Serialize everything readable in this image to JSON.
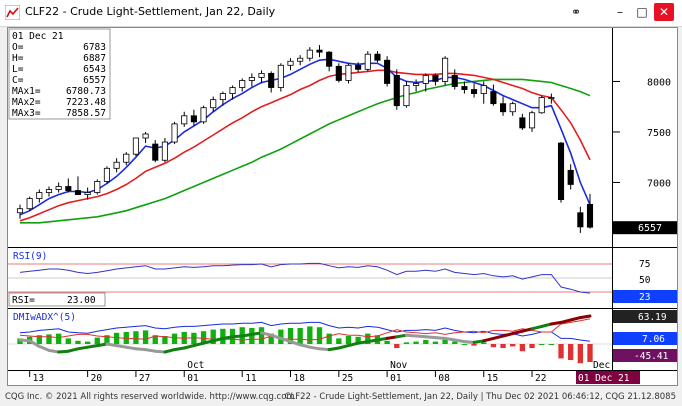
{
  "window": {
    "title": "CLF22 - Crude Light-Settlement, Jan 22, Daily",
    "icons": [
      "app-icon",
      "link-icon",
      "minimize-icon",
      "maximize-icon",
      "close-icon"
    ]
  },
  "price_panel": {
    "info": [
      {
        "k": "01 Dec 21",
        "v": ""
      },
      {
        "k": "O=",
        "v": "6783"
      },
      {
        "k": "H=",
        "v": "6887"
      },
      {
        "k": "L=",
        "v": "6543"
      },
      {
        "k": "C=",
        "v": "6557"
      },
      {
        "k": "MAx1=",
        "v": "6780.73"
      },
      {
        "k": "MAx2=",
        "v": "7223.48"
      },
      {
        "k": "MAx3=",
        "v": "7858.57"
      }
    ],
    "y_ticks": [
      "8000",
      "7500",
      "7000"
    ],
    "last_price": "6557"
  },
  "rsi_panel": {
    "label": "RSI(9)",
    "ticks": [
      "75",
      "50"
    ],
    "readout_label": "RSI=",
    "readout_value": "23.00",
    "last_value": "23"
  },
  "dmi_panel": {
    "label": "DMIwADX^(5)",
    "badges": [
      "63.19",
      "7.06",
      "-45.41"
    ]
  },
  "x_axis": {
    "day_labels": [
      "13",
      "20",
      "27",
      "01",
      "11",
      "18",
      "25",
      "01",
      "08",
      "15",
      "22",
      "01 Dec 21"
    ],
    "month_labels": [
      "Oct",
      "Nov",
      "Dec"
    ]
  },
  "status": {
    "left": "CQG Inc. © 2021 All rights reserved worldwide. http://www.cqg.com",
    "right": "CLF22 - Crude Light-Settlement, Jan 22, Daily | Thu Dec 02 2021 06:46:12, CQG 21.12.8085"
  },
  "colors": {
    "ma_fast": "#1a2be0",
    "ma_mid": "#e02020",
    "ma_slow": "#10a010",
    "rsi_line": "#3333cc",
    "badge_blue": "#1040ff",
    "badge_dark": "#222222",
    "badge_purple": "#701060",
    "date_badge": "#800040"
  },
  "chart_data": {
    "type": "candlestick",
    "title": "CLF22 - Crude Light-Settlement, Jan 22, Daily",
    "ylim": [
      6450,
      8450
    ],
    "y_ticks": [
      7000,
      7500,
      8000
    ],
    "candles": [
      {
        "o": 6700,
        "h": 6780,
        "l": 6640,
        "c": 6740
      },
      {
        "o": 6740,
        "h": 6860,
        "l": 6720,
        "c": 6840
      },
      {
        "o": 6840,
        "h": 6930,
        "l": 6800,
        "c": 6900
      },
      {
        "o": 6900,
        "h": 6960,
        "l": 6860,
        "c": 6930
      },
      {
        "o": 6930,
        "h": 7000,
        "l": 6900,
        "c": 6960
      },
      {
        "o": 6960,
        "h": 7040,
        "l": 6900,
        "c": 6920
      },
      {
        "o": 6920,
        "h": 7060,
        "l": 6880,
        "c": 6880
      },
      {
        "o": 6880,
        "h": 6950,
        "l": 6830,
        "c": 6900
      },
      {
        "o": 6900,
        "h": 7030,
        "l": 6880,
        "c": 7010
      },
      {
        "o": 7010,
        "h": 7160,
        "l": 6990,
        "c": 7140
      },
      {
        "o": 7140,
        "h": 7240,
        "l": 7100,
        "c": 7200
      },
      {
        "o": 7200,
        "h": 7300,
        "l": 7170,
        "c": 7280
      },
      {
        "o": 7280,
        "h": 7420,
        "l": 7260,
        "c": 7440
      },
      {
        "o": 7440,
        "h": 7500,
        "l": 7390,
        "c": 7480
      },
      {
        "o": 7380,
        "h": 7420,
        "l": 7200,
        "c": 7220
      },
      {
        "o": 7220,
        "h": 7440,
        "l": 7200,
        "c": 7400
      },
      {
        "o": 7400,
        "h": 7600,
        "l": 7380,
        "c": 7580
      },
      {
        "o": 7580,
        "h": 7700,
        "l": 7550,
        "c": 7660
      },
      {
        "o": 7660,
        "h": 7720,
        "l": 7560,
        "c": 7600
      },
      {
        "o": 7600,
        "h": 7760,
        "l": 7580,
        "c": 7740
      },
      {
        "o": 7740,
        "h": 7850,
        "l": 7700,
        "c": 7820
      },
      {
        "o": 7820,
        "h": 7900,
        "l": 7760,
        "c": 7880
      },
      {
        "o": 7880,
        "h": 7960,
        "l": 7820,
        "c": 7940
      },
      {
        "o": 7940,
        "h": 8030,
        "l": 7900,
        "c": 8010
      },
      {
        "o": 8010,
        "h": 8080,
        "l": 7950,
        "c": 8040
      },
      {
        "o": 8040,
        "h": 8110,
        "l": 7980,
        "c": 8080
      },
      {
        "o": 8080,
        "h": 8100,
        "l": 7890,
        "c": 7940
      },
      {
        "o": 7940,
        "h": 8180,
        "l": 7900,
        "c": 8160
      },
      {
        "o": 8160,
        "h": 8230,
        "l": 8110,
        "c": 8200
      },
      {
        "o": 8200,
        "h": 8260,
        "l": 8160,
        "c": 8230
      },
      {
        "o": 8230,
        "h": 8340,
        "l": 8200,
        "c": 8310
      },
      {
        "o": 8310,
        "h": 8360,
        "l": 8240,
        "c": 8290
      },
      {
        "o": 8290,
        "h": 8300,
        "l": 8100,
        "c": 8150
      },
      {
        "o": 8150,
        "h": 8180,
        "l": 7990,
        "c": 8010
      },
      {
        "o": 8010,
        "h": 8180,
        "l": 7980,
        "c": 8160
      },
      {
        "o": 8160,
        "h": 8190,
        "l": 8090,
        "c": 8120
      },
      {
        "o": 8120,
        "h": 8300,
        "l": 8100,
        "c": 8270
      },
      {
        "o": 8270,
        "h": 8300,
        "l": 8190,
        "c": 8210
      },
      {
        "o": 8210,
        "h": 8250,
        "l": 7950,
        "c": 7980
      },
      {
        "o": 8060,
        "h": 8120,
        "l": 7720,
        "c": 7760
      },
      {
        "o": 7760,
        "h": 8000,
        "l": 7740,
        "c": 7960
      },
      {
        "o": 7960,
        "h": 8020,
        "l": 7900,
        "c": 7980
      },
      {
        "o": 7980,
        "h": 8080,
        "l": 7900,
        "c": 8060
      },
      {
        "o": 8060,
        "h": 8080,
        "l": 7960,
        "c": 8000
      },
      {
        "o": 8000,
        "h": 8250,
        "l": 7960,
        "c": 8230
      },
      {
        "o": 8060,
        "h": 8120,
        "l": 7920,
        "c": 7950
      },
      {
        "o": 7950,
        "h": 8000,
        "l": 7880,
        "c": 7920
      },
      {
        "o": 7920,
        "h": 7980,
        "l": 7840,
        "c": 7880
      },
      {
        "o": 7880,
        "h": 8000,
        "l": 7780,
        "c": 7960
      },
      {
        "o": 7900,
        "h": 7970,
        "l": 7760,
        "c": 7780
      },
      {
        "o": 7780,
        "h": 7850,
        "l": 7660,
        "c": 7700
      },
      {
        "o": 7700,
        "h": 7800,
        "l": 7660,
        "c": 7780
      },
      {
        "o": 7640,
        "h": 7680,
        "l": 7520,
        "c": 7540
      },
      {
        "o": 7540,
        "h": 7710,
        "l": 7500,
        "c": 7690
      },
      {
        "o": 7690,
        "h": 7860,
        "l": 7680,
        "c": 7840
      },
      {
        "o": 7840,
        "h": 7880,
        "l": 7780,
        "c": 7840
      },
      {
        "o": 7390,
        "h": 7400,
        "l": 6800,
        "c": 6830
      },
      {
        "o": 7120,
        "h": 7180,
        "l": 6930,
        "c": 6980
      },
      {
        "o": 6700,
        "h": 6760,
        "l": 6500,
        "c": 6560
      },
      {
        "o": 6783,
        "h": 6887,
        "l": 6543,
        "c": 6557
      }
    ],
    "ma_fast": [
      6680,
      6720,
      6780,
      6840,
      6880,
      6910,
      6910,
      6900,
      6930,
      6990,
      7060,
      7150,
      7250,
      7360,
      7340,
      7360,
      7420,
      7500,
      7560,
      7620,
      7700,
      7770,
      7830,
      7880,
      7940,
      7990,
      8010,
      8030,
      8070,
      8120,
      8170,
      8210,
      8220,
      8200,
      8180,
      8170,
      8180,
      8180,
      8130,
      8040,
      8000,
      7990,
      8000,
      8010,
      8040,
      8040,
      8020,
      7990,
      7960,
      7910,
      7860,
      7820,
      7780,
      7740,
      7740,
      7760,
      7530,
      7290,
      7000,
      6780
    ],
    "ma_mid": [
      6620,
      6650,
      6690,
      6730,
      6770,
      6800,
      6820,
      6840,
      6860,
      6890,
      6930,
      6980,
      7040,
      7110,
      7150,
      7190,
      7240,
      7300,
      7350,
      7410,
      7470,
      7530,
      7590,
      7640,
      7700,
      7750,
      7790,
      7830,
      7870,
      7920,
      7960,
      8010,
      8050,
      8070,
      8080,
      8090,
      8100,
      8110,
      8110,
      8090,
      8080,
      8070,
      8070,
      8070,
      8080,
      8080,
      8070,
      8060,
      8040,
      8020,
      7990,
      7960,
      7930,
      7890,
      7860,
      7840,
      7720,
      7590,
      7420,
      7223
    ],
    "ma_slow": [
      6600,
      6600,
      6600,
      6610,
      6620,
      6630,
      6640,
      6650,
      6660,
      6680,
      6700,
      6720,
      6750,
      6780,
      6810,
      6840,
      6880,
      6920,
      6960,
      7000,
      7040,
      7080,
      7120,
      7160,
      7200,
      7250,
      7290,
      7330,
      7380,
      7430,
      7480,
      7530,
      7580,
      7620,
      7660,
      7700,
      7740,
      7780,
      7810,
      7840,
      7870,
      7890,
      7920,
      7940,
      7960,
      7980,
      7990,
      8000,
      8010,
      8020,
      8020,
      8020,
      8020,
      8010,
      8000,
      7990,
      7960,
      7930,
      7900,
      7859
    ],
    "rsi": {
      "ylim": [
        0,
        100
      ],
      "values": [
        60,
        62,
        64,
        66,
        66,
        64,
        60,
        58,
        60,
        63,
        66,
        68,
        70,
        72,
        66,
        66,
        68,
        70,
        69,
        70,
        72,
        72,
        73,
        74,
        74,
        75,
        70,
        74,
        75,
        75,
        76,
        76,
        72,
        68,
        70,
        69,
        72,
        70,
        64,
        56,
        62,
        62,
        64,
        62,
        66,
        60,
        58,
        56,
        58,
        54,
        52,
        54,
        48,
        52,
        56,
        56,
        34,
        30,
        25,
        23
      ]
    },
    "dmi": {
      "ylim": [
        -60,
        80
      ],
      "plus_di": [
        28,
        30,
        34,
        36,
        38,
        30,
        28,
        27,
        32,
        36,
        40,
        42,
        44,
        46,
        40,
        38,
        42,
        44,
        44,
        46,
        48,
        50,
        50,
        52,
        52,
        54,
        46,
        50,
        52,
        52,
        54,
        54,
        46,
        40,
        42,
        40,
        44,
        42,
        36,
        30,
        34,
        34,
        36,
        34,
        40,
        34,
        30,
        28,
        32,
        26,
        24,
        26,
        20,
        24,
        30,
        30,
        14,
        14,
        10,
        7
      ],
      "minus_di": [
        22,
        20,
        18,
        18,
        16,
        20,
        24,
        24,
        20,
        18,
        16,
        14,
        13,
        12,
        20,
        18,
        16,
        14,
        16,
        14,
        12,
        12,
        12,
        10,
        12,
        12,
        20,
        14,
        12,
        12,
        10,
        12,
        20,
        26,
        22,
        22,
        18,
        20,
        28,
        36,
        30,
        28,
        26,
        28,
        24,
        28,
        30,
        32,
        28,
        34,
        34,
        32,
        38,
        34,
        30,
        30,
        50,
        54,
        58,
        63
      ],
      "adx": [
        10,
        8,
        -6,
        -16,
        -20,
        -18,
        -12,
        -8,
        -4,
        0,
        -4,
        -8,
        -12,
        -14,
        -18,
        -20,
        -14,
        -10,
        -4,
        2,
        8,
        14,
        18,
        20,
        24,
        28,
        22,
        14,
        6,
        -2,
        -8,
        -12,
        -14,
        -10,
        -4,
        2,
        6,
        10,
        14,
        18,
        22,
        20,
        18,
        16,
        14,
        10,
        6,
        4,
        8,
        14,
        20,
        26,
        32,
        38,
        44,
        50,
        54,
        60,
        66,
        70
      ],
      "hist": [
        14,
        18,
        22,
        24,
        26,
        14,
        8,
        6,
        16,
        22,
        28,
        30,
        32,
        34,
        22,
        20,
        26,
        30,
        28,
        32,
        36,
        38,
        38,
        42,
        40,
        42,
        26,
        36,
        40,
        40,
        44,
        42,
        26,
        14,
        20,
        18,
        26,
        22,
        8,
        -10,
        4,
        6,
        10,
        6,
        16,
        6,
        0,
        -4,
        4,
        -8,
        -10,
        -6,
        -18,
        -10,
        0,
        0,
        -36,
        -40,
        -48,
        -45
      ]
    }
  }
}
